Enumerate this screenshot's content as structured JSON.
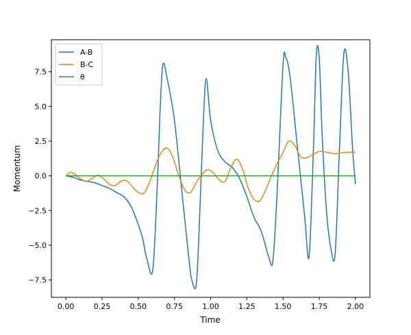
{
  "chart_data": {
    "type": "line",
    "title": "",
    "xlabel": "Time",
    "ylabel": "Momentum",
    "xlim": [
      -0.1,
      2.1
    ],
    "ylim": [
      -8.75,
      9.8
    ],
    "xticks": [
      0.0,
      0.25,
      0.5,
      0.75,
      1.0,
      1.25,
      1.5,
      1.75,
      2.0
    ],
    "xtick_labels": [
      "0.00",
      "0.25",
      "0.50",
      "0.75",
      "1.00",
      "1.25",
      "1.50",
      "1.75",
      "2.00"
    ],
    "yticks": [
      -7.5,
      -5.0,
      -2.5,
      0.0,
      2.5,
      5.0,
      7.5
    ],
    "ytick_labels": [
      "−7.5",
      "−5.0",
      "−2.5",
      "0.0",
      "2.5",
      "5.0",
      "7.5"
    ],
    "grid": false,
    "legend_position": "top-left",
    "series": [
      {
        "name": "A-B",
        "color": "#1f77b4",
        "x": [
          0.0,
          0.05,
          0.1,
          0.15,
          0.2,
          0.25,
          0.3,
          0.35,
          0.4,
          0.45,
          0.5,
          0.53,
          0.56,
          0.6,
          0.63,
          0.65,
          0.67,
          0.7,
          0.75,
          0.8,
          0.85,
          0.87,
          0.9,
          0.92,
          0.95,
          0.97,
          1.0,
          1.05,
          1.1,
          1.15,
          1.2,
          1.25,
          1.3,
          1.35,
          1.4,
          1.43,
          1.46,
          1.5,
          1.52,
          1.55,
          1.6,
          1.65,
          1.68,
          1.71,
          1.73,
          1.75,
          1.77,
          1.8,
          1.83,
          1.86,
          1.89,
          1.92,
          1.95,
          1.98,
          2.0
        ],
        "y": [
          0.0,
          -0.1,
          -0.3,
          -0.4,
          -0.5,
          -0.7,
          -0.9,
          -1.2,
          -1.5,
          -2.2,
          -3.5,
          -4.5,
          -6.0,
          -6.8,
          -1.0,
          4.5,
          8.0,
          7.0,
          4.0,
          -1.0,
          -6.0,
          -7.5,
          -7.9,
          -4.0,
          4.0,
          7.0,
          4.0,
          1.8,
          1.0,
          0.6,
          -0.2,
          -1.5,
          -3.0,
          -4.0,
          -5.8,
          -6.1,
          -1.0,
          8.0,
          8.5,
          7.0,
          2.0,
          -3.0,
          -5.8,
          2.0,
          8.7,
          8.5,
          3.0,
          -2.5,
          -5.2,
          -5.6,
          2.0,
          8.8,
          7.5,
          2.0,
          -0.6
        ]
      },
      {
        "name": "B-C",
        "color": "#ff7f0e",
        "x": [
          0.0,
          0.03,
          0.06,
          0.1,
          0.14,
          0.18,
          0.22,
          0.26,
          0.3,
          0.34,
          0.38,
          0.42,
          0.46,
          0.5,
          0.54,
          0.58,
          0.62,
          0.66,
          0.7,
          0.74,
          0.78,
          0.82,
          0.86,
          0.9,
          0.94,
          0.98,
          1.02,
          1.06,
          1.1,
          1.14,
          1.18,
          1.22,
          1.26,
          1.3,
          1.34,
          1.38,
          1.42,
          1.46,
          1.5,
          1.54,
          1.58,
          1.62,
          1.66,
          1.7,
          1.75,
          1.8,
          1.85,
          1.9,
          1.95,
          2.0
        ],
        "y": [
          0.0,
          0.25,
          0.15,
          -0.2,
          -0.4,
          -0.2,
          0.05,
          -0.2,
          -0.6,
          -0.7,
          -0.4,
          -0.35,
          -0.8,
          -1.2,
          -1.25,
          -0.4,
          0.8,
          1.7,
          2.0,
          1.3,
          0.0,
          -1.0,
          -1.2,
          -0.5,
          0.1,
          0.45,
          0.2,
          -0.3,
          -0.4,
          0.6,
          1.2,
          0.5,
          -0.9,
          -1.7,
          -1.8,
          -1.0,
          0.0,
          0.9,
          1.7,
          2.5,
          2.2,
          1.4,
          1.3,
          1.5,
          1.75,
          1.7,
          1.6,
          1.65,
          1.7,
          1.7
        ]
      },
      {
        "name": "θ",
        "color": "#2ca02c",
        "x": [
          0.0,
          2.0
        ],
        "y": [
          0.0,
          0.0
        ]
      }
    ]
  }
}
